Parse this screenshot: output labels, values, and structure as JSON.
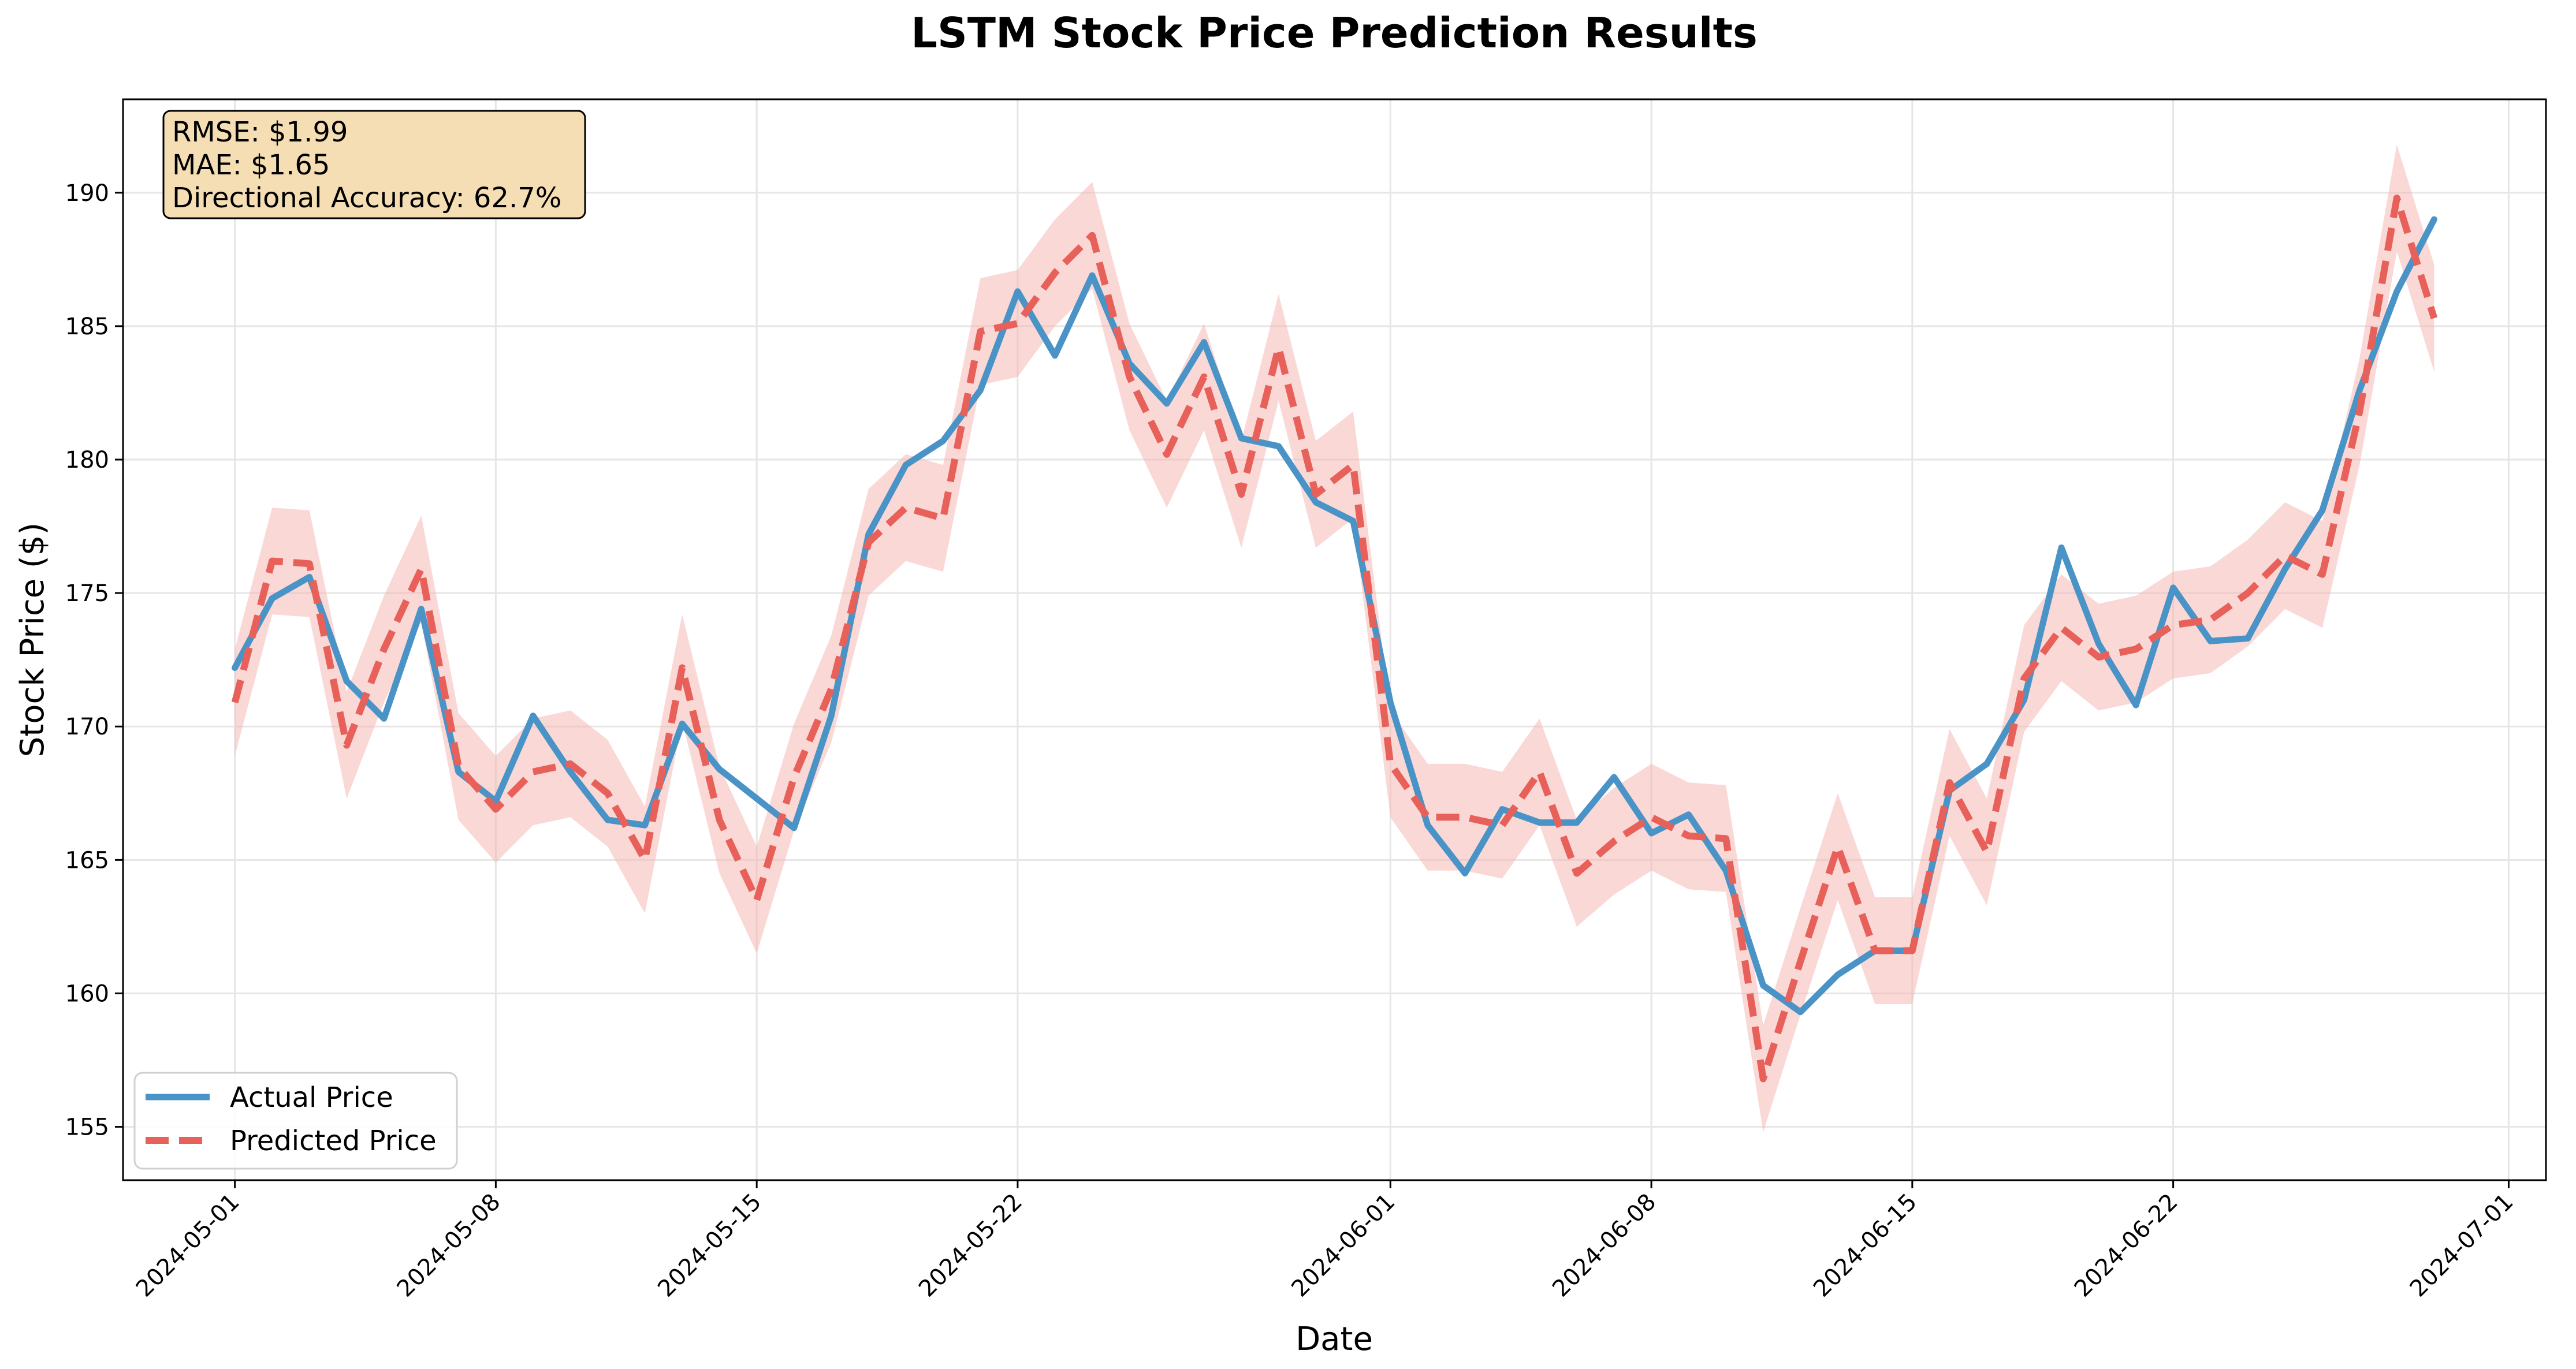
{
  "colors": {
    "actual": "#4a93c6",
    "predicted": "#e8605a",
    "band": "#f3b1ae",
    "annotation_bg": "#f5deb3"
  },
  "chart_data": {
    "type": "line",
    "title": "LSTM Stock Price Prediction Results",
    "xlabel": "Date",
    "ylabel": "Stock Price ($)",
    "ylim": [
      153,
      193.5
    ],
    "xlim": [
      "2024-04-28",
      "2024-07-02"
    ],
    "grid": true,
    "legend_position": "lower-left",
    "x_tick_labels": [
      "2024-05-01",
      "2024-05-08",
      "2024-05-15",
      "2024-05-22",
      "2024-06-01",
      "2024-06-08",
      "2024-06-15",
      "2024-06-22",
      "2024-07-01"
    ],
    "y_tick_labels": [
      "155",
      "160",
      "165",
      "170",
      "175",
      "180",
      "185",
      "190"
    ],
    "annotation": [
      "RMSE: $1.99",
      "MAE: $1.65",
      "Directional Accuracy: 62.7%"
    ],
    "x": [
      "2024-05-01",
      "2024-05-02",
      "2024-05-03",
      "2024-05-04",
      "2024-05-05",
      "2024-05-06",
      "2024-05-07",
      "2024-05-08",
      "2024-05-09",
      "2024-05-10",
      "2024-05-11",
      "2024-05-12",
      "2024-05-13",
      "2024-05-14",
      "2024-05-15",
      "2024-05-16",
      "2024-05-17",
      "2024-05-18",
      "2024-05-19",
      "2024-05-20",
      "2024-05-21",
      "2024-05-22",
      "2024-05-23",
      "2024-05-24",
      "2024-05-25",
      "2024-05-26",
      "2024-05-27",
      "2024-05-28",
      "2024-05-29",
      "2024-05-30",
      "2024-05-31",
      "2024-06-01",
      "2024-06-02",
      "2024-06-03",
      "2024-06-04",
      "2024-06-05",
      "2024-06-06",
      "2024-06-07",
      "2024-06-08",
      "2024-06-09",
      "2024-06-10",
      "2024-06-11",
      "2024-06-12",
      "2024-06-13",
      "2024-06-14",
      "2024-06-15",
      "2024-06-16",
      "2024-06-17",
      "2024-06-18",
      "2024-06-19",
      "2024-06-20",
      "2024-06-21",
      "2024-06-22",
      "2024-06-23",
      "2024-06-24",
      "2024-06-25",
      "2024-06-26",
      "2024-06-27",
      "2024-06-28",
      "2024-06-29",
      "2024-06-30"
    ],
    "series": [
      {
        "name": "Actual Price",
        "style": "solid",
        "values": [
          172.2,
          174.8,
          175.6,
          171.7,
          170.3,
          174.4,
          168.3,
          167.2,
          170.4,
          168.3,
          166.5,
          166.3,
          170.1,
          168.4,
          167.3,
          166.2,
          170.4,
          177.2,
          179.8,
          180.7,
          182.6,
          186.3,
          183.9,
          186.9,
          183.6,
          182.1,
          184.4,
          180.8,
          180.5,
          178.4,
          177.7,
          170.9,
          166.3,
          164.5,
          166.9,
          166.4,
          166.4,
          168.1,
          166.0,
          166.7,
          164.6,
          160.3,
          159.3,
          160.7,
          161.6,
          161.6,
          167.6,
          168.6,
          171.0,
          176.7,
          173.1,
          170.8,
          175.2,
          173.2,
          173.3,
          175.9,
          178.1,
          182.6,
          186.3,
          189.0,
          null
        ]
      },
      {
        "name": "Predicted Price",
        "style": "dashed",
        "values": [
          170.9,
          176.2,
          176.1,
          169.3,
          172.9,
          175.9,
          168.5,
          166.9,
          168.3,
          168.6,
          167.5,
          165.0,
          172.2,
          166.5,
          163.5,
          168.1,
          171.4,
          176.9,
          178.2,
          177.8,
          184.8,
          185.1,
          187.0,
          188.4,
          183.1,
          180.2,
          183.1,
          178.7,
          184.2,
          178.7,
          179.8,
          168.6,
          166.6,
          166.6,
          166.3,
          168.3,
          164.5,
          165.7,
          166.6,
          165.9,
          165.8,
          156.8,
          161.2,
          165.5,
          161.6,
          161.6,
          167.9,
          165.3,
          171.8,
          173.7,
          172.6,
          172.9,
          173.8,
          174.0,
          175.0,
          176.4,
          175.7,
          181.8,
          189.8,
          185.3,
          null
        ]
      }
    ],
    "confidence_band": {
      "lower": [
        168.9,
        174.2,
        174.1,
        167.3,
        170.9,
        173.9,
        166.5,
        164.9,
        166.3,
        166.6,
        165.5,
        163.0,
        170.2,
        164.5,
        161.5,
        166.1,
        169.4,
        174.9,
        176.2,
        175.8,
        182.8,
        183.1,
        185.0,
        186.4,
        181.1,
        178.2,
        181.1,
        176.7,
        182.2,
        176.7,
        177.8,
        166.6,
        164.6,
        164.6,
        164.3,
        166.3,
        162.5,
        163.7,
        164.6,
        163.9,
        163.8,
        154.8,
        159.2,
        163.5,
        159.6,
        159.6,
        165.9,
        163.3,
        169.8,
        171.7,
        170.6,
        170.9,
        171.8,
        172.0,
        173.0,
        174.4,
        173.7,
        179.8,
        187.8,
        183.3,
        null
      ],
      "upper": [
        172.9,
        178.2,
        178.1,
        171.3,
        174.9,
        177.9,
        170.5,
        168.9,
        170.3,
        170.6,
        169.5,
        167.0,
        174.2,
        168.5,
        165.5,
        170.1,
        173.4,
        178.9,
        180.2,
        179.8,
        186.8,
        187.1,
        189.0,
        190.4,
        185.1,
        182.2,
        185.1,
        180.7,
        186.2,
        180.7,
        181.8,
        170.6,
        168.6,
        168.6,
        168.3,
        170.3,
        166.5,
        167.7,
        168.6,
        167.9,
        167.8,
        158.8,
        163.2,
        167.5,
        163.6,
        163.6,
        169.9,
        167.3,
        173.8,
        175.7,
        174.6,
        174.9,
        175.8,
        176.0,
        177.0,
        178.4,
        177.7,
        183.8,
        191.8,
        187.3,
        null
      ]
    }
  }
}
